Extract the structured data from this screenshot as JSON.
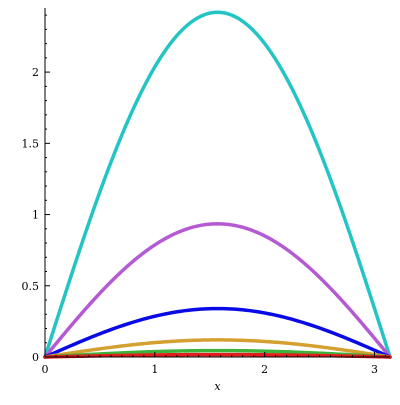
{
  "chart_data": {
    "type": "line",
    "title": "",
    "xlabel": "x",
    "ylabel": "",
    "xlim": [
      0,
      3.14159
    ],
    "ylim": [
      0,
      2.45
    ],
    "grid": false,
    "legend": "none",
    "x_ticks": [
      {
        "value": 0,
        "label": "0"
      },
      {
        "value": 1,
        "label": "1"
      },
      {
        "value": 2,
        "label": "2"
      },
      {
        "value": 3,
        "label": "3"
      }
    ],
    "y_ticks": [
      {
        "value": 0,
        "label": "0"
      },
      {
        "value": 0.5,
        "label": "0.5"
      },
      {
        "value": 1,
        "label": "1"
      },
      {
        "value": 1.5,
        "label": "1.5"
      },
      {
        "value": 2,
        "label": "2"
      }
    ],
    "series": [
      {
        "peak": 2.42,
        "color": "#24c4c4"
      },
      {
        "peak": 0.935,
        "color": "#b45ad2"
      },
      {
        "peak": 0.34,
        "color": "#0a0ae6"
      },
      {
        "peak": 0.12,
        "color": "#d4a030"
      },
      {
        "peak": 0.045,
        "color": "#3cb43c"
      },
      {
        "peak": 0.017,
        "color": "#e01e1e"
      }
    ]
  }
}
